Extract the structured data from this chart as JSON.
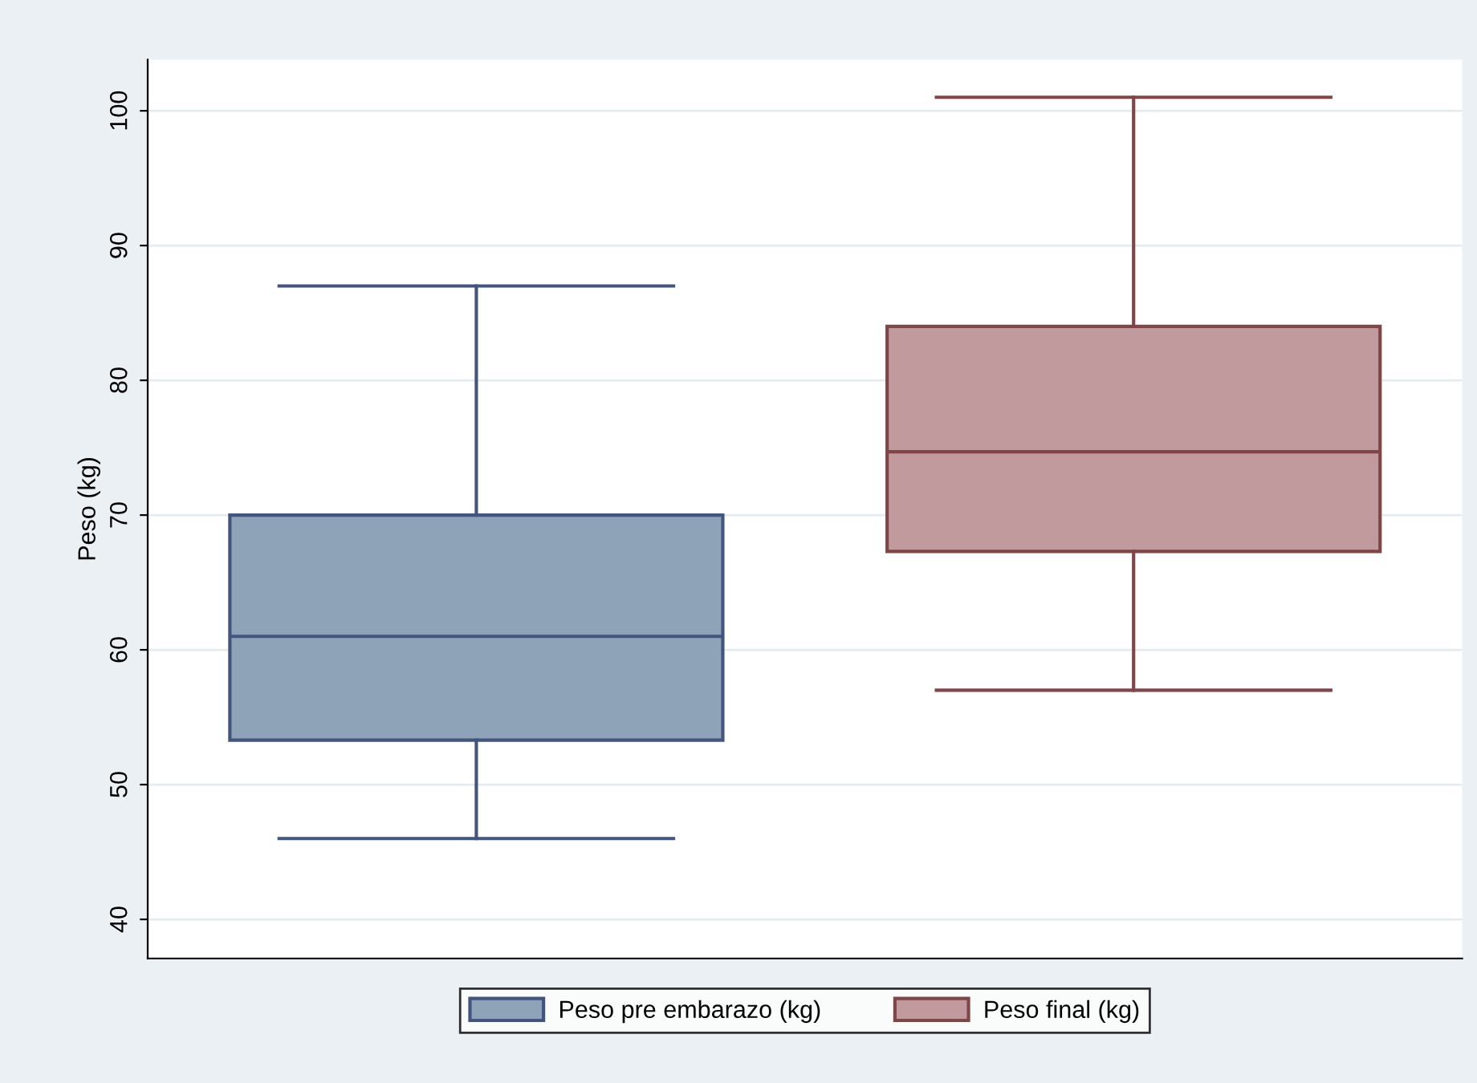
{
  "chart_data": {
    "type": "box",
    "ylabel": "Peso (kg)",
    "categories": [
      null
    ],
    "series": [
      {
        "name": "Peso pre embarazo (kg)",
        "color": "#8fa3b8",
        "boxes": [
          {
            "low": 46,
            "q1": 53.3,
            "median": 61,
            "q3": 70,
            "high": 87
          }
        ]
      },
      {
        "name": "Peso final (kg)",
        "color": "#c09a9c",
        "boxes": [
          {
            "low": 57,
            "q1": 67.3,
            "median": 74.7,
            "q3": 84,
            "high": 101
          }
        ]
      }
    ],
    "ylim": [
      37.1,
      103.8
    ],
    "yticks": [
      40,
      50,
      60,
      70,
      80,
      90,
      100
    ],
    "grid": "y",
    "legend": "bottom",
    "tick_labels": "y"
  }
}
